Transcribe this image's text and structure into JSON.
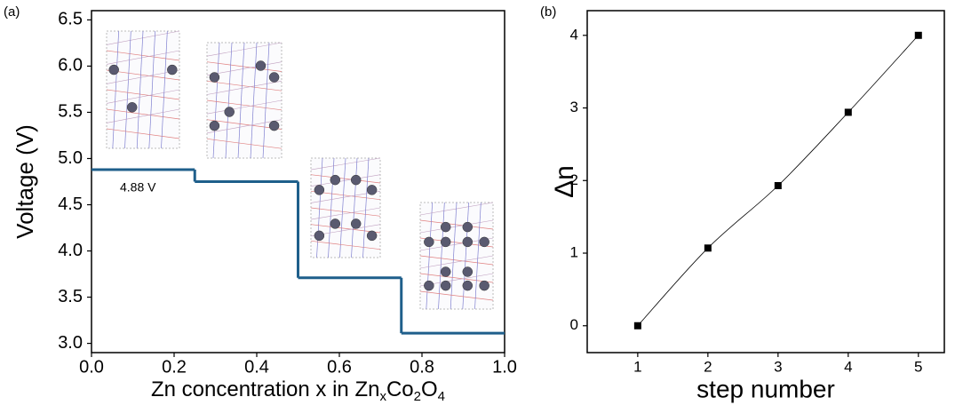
{
  "chart_data": [
    {
      "type": "step",
      "panel_label": "(a)",
      "ylabel": "Voltage (V)",
      "xlabel_parts": [
        "Zn concentration x in Zn",
        "x",
        "Co",
        "2",
        "O",
        "4"
      ],
      "annotation": "4.88 V",
      "xlim": [
        0,
        1
      ],
      "xticks": [
        {
          "value": 0,
          "label": "0.0"
        },
        0.2,
        0.4,
        0.6,
        0.8,
        {
          "value": 1,
          "label": "1.0"
        }
      ],
      "ylim": [
        2.9,
        6.6
      ],
      "yticks": [
        {
          "value": 3,
          "label": "3.0"
        },
        3.5,
        {
          "value": 4,
          "label": "4.0"
        },
        4.5,
        {
          "value": 5,
          "label": "5.0"
        },
        5.5,
        {
          "value": 6,
          "label": "6.0"
        },
        6.5
      ],
      "series": [
        {
          "color": "#1f5f8b",
          "x": [
            0,
            0.25,
            0.5,
            0.75
          ],
          "values": [
            4.88,
            4.75,
            3.71,
            3.11
          ]
        }
      ]
    },
    {
      "type": "line",
      "panel_label": "(b)",
      "ylabel": "Δn",
      "xlabel": "step number",
      "xlim": [
        0.28,
        5.37
      ],
      "xticks": [
        1,
        2,
        3,
        4,
        5
      ],
      "ylim": [
        -0.37,
        4.34
      ],
      "yticks": [
        0,
        1,
        2,
        3,
        4
      ],
      "series": [
        {
          "color": "#000000",
          "x": [
            1,
            2,
            3,
            4,
            5
          ],
          "values": [
            0,
            1.07,
            1.93,
            2.94,
            4.0
          ]
        }
      ]
    }
  ]
}
